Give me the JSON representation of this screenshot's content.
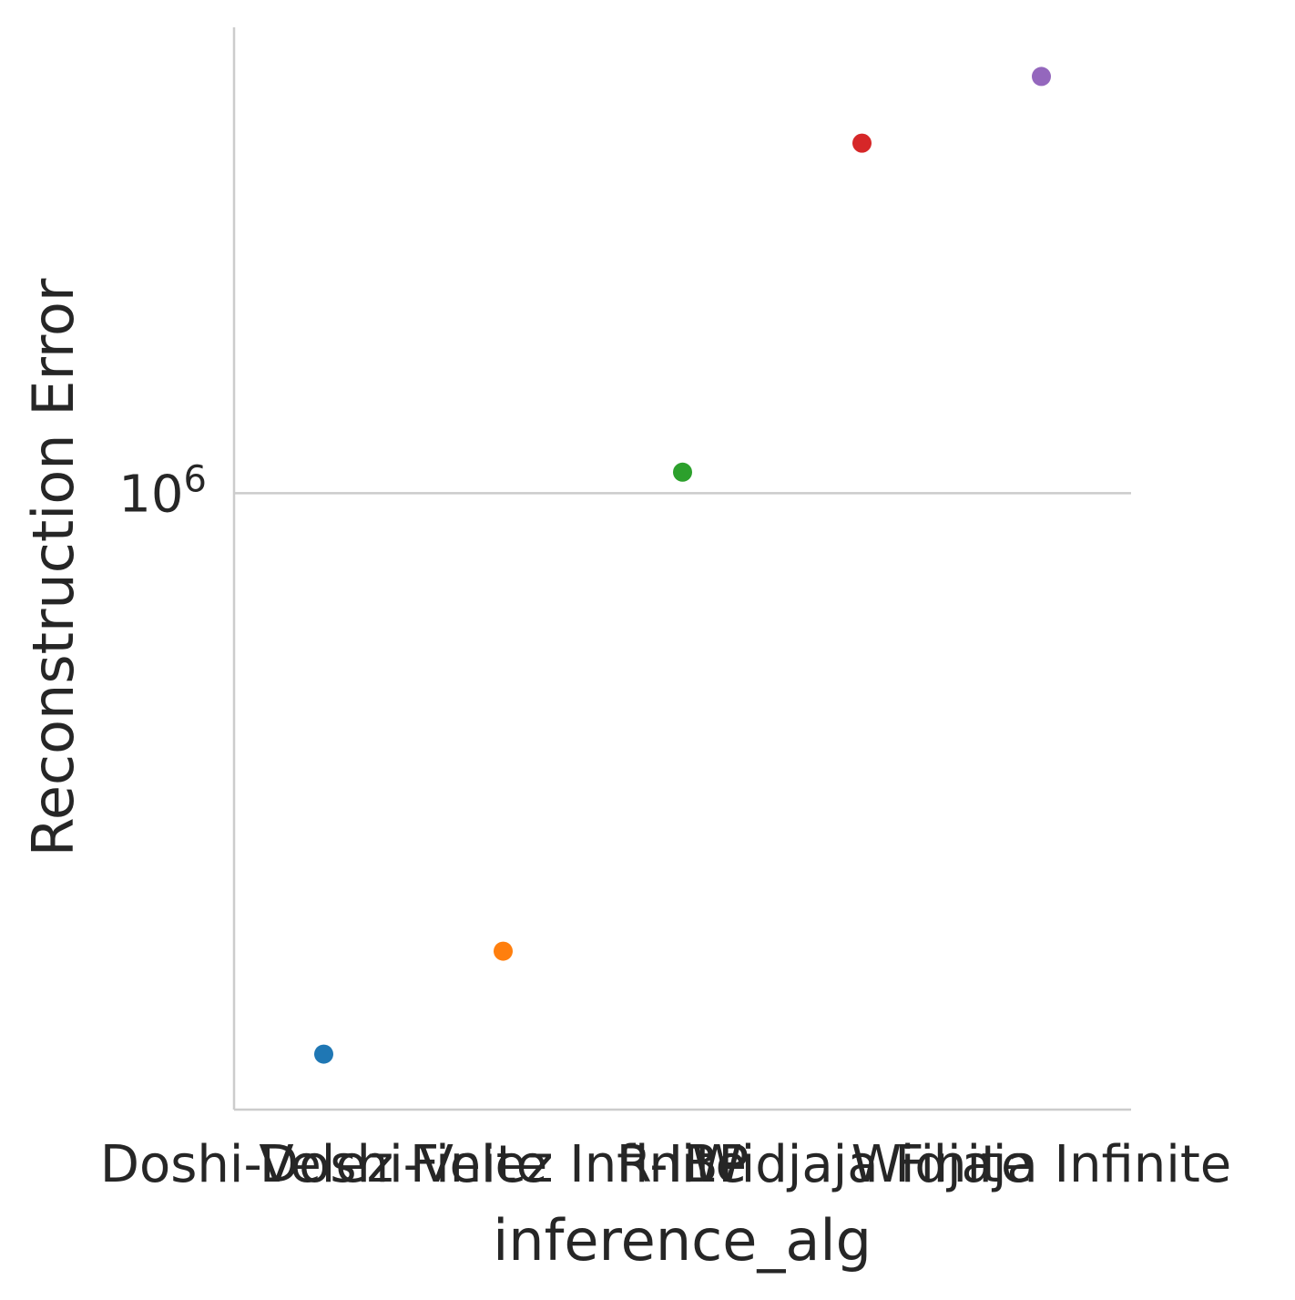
{
  "chart_data": {
    "type": "scatter",
    "title": "",
    "xlabel": "inference_alg",
    "ylabel": "Reconstruction Error",
    "yscale": "log",
    "ylim": [
      560000,
      1550000
    ],
    "y_ticks": [
      {
        "value": 1000000,
        "label": "10",
        "exp": "6"
      }
    ],
    "grid": "horizontal at major y ticks",
    "categories": [
      "Doshi-Velez Finite",
      "Doshi-Velez Infinite",
      "R-IBP",
      "Widjaja Finite",
      "Widjaja Infinite"
    ],
    "values": [
      590000,
      650000,
      1020000,
      1390000,
      1480000
    ],
    "colors": [
      "#1f77b4",
      "#ff7f0e",
      "#2ca02c",
      "#d62728",
      "#9467bd"
    ]
  }
}
